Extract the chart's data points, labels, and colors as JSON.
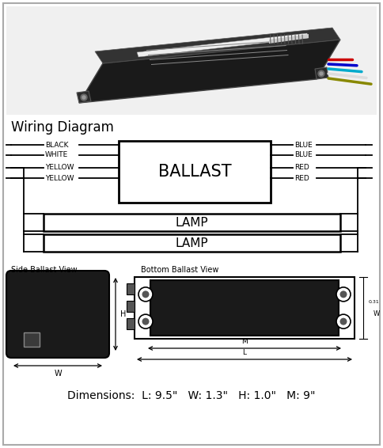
{
  "bg_color": "#ffffff",
  "border_color": "#aaaaaa",
  "title": "Wiring Diagram",
  "left_labels": [
    "BLACK",
    "WHITE",
    "YELLOW",
    "YELLOW"
  ],
  "right_labels": [
    "BLUE",
    "BLUE",
    "RED",
    "RED"
  ],
  "ballast_label": "BALLAST",
  "lamp_label": "LAMP",
  "side_view_title": "Side Ballast View",
  "bottom_view_title": "Bottom Ballast View",
  "dimensions_text": "Dimensions:  L: 9.5\"   W: 1.3\"   H: 1.0\"   M: 9\"",
  "black_fill": "#1a1a1a",
  "dark_gray": "#2a2a2a",
  "line_color": "#000000",
  "photo_bg": "#e8e8e8"
}
